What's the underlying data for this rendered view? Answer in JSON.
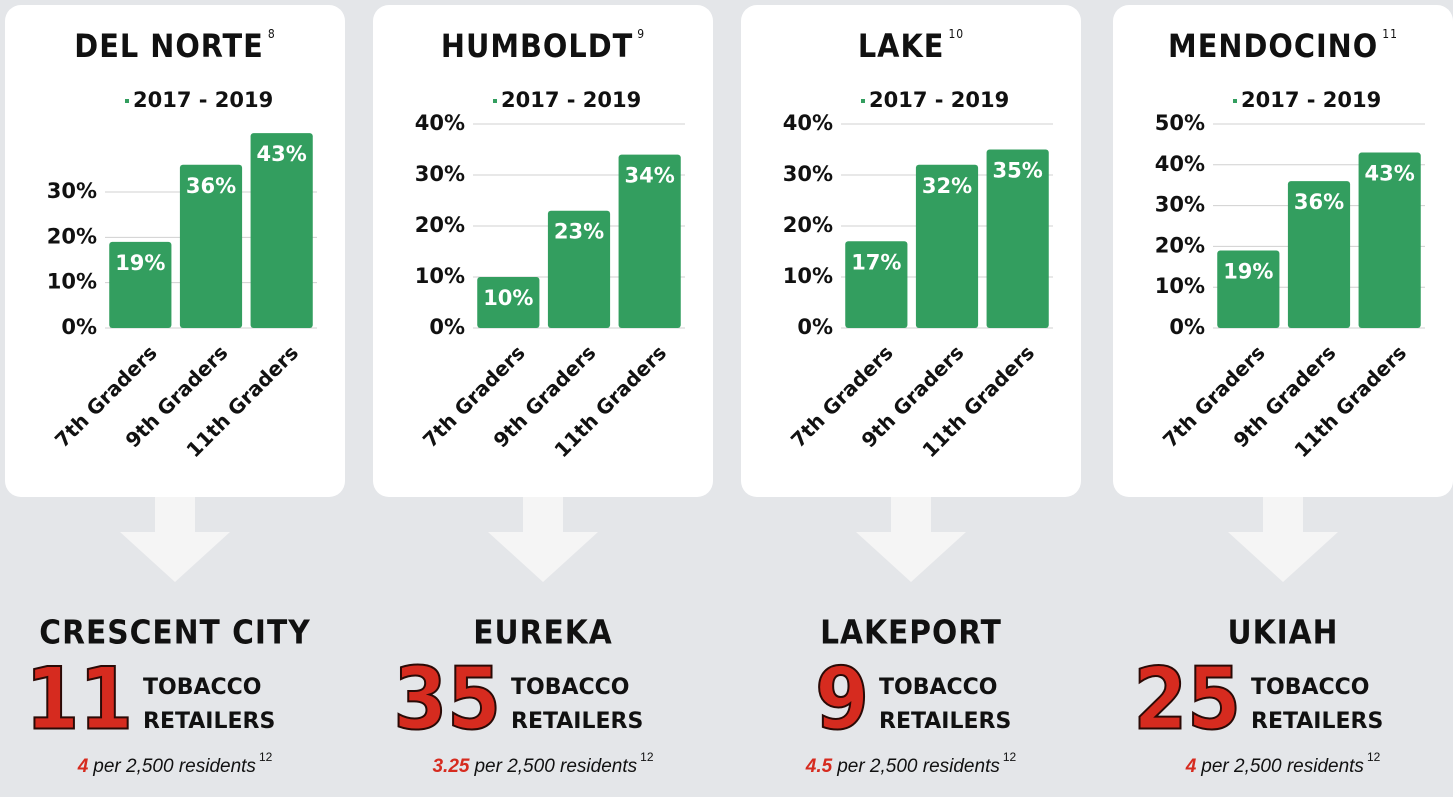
{
  "chart_data": [
    {
      "type": "bar",
      "title": "DEL NORTE",
      "footnote": "8",
      "legend": "2017 - 2019",
      "color": "#339e5f",
      "categories": [
        "7th Graders",
        "9th Graders",
        "11th Graders"
      ],
      "values": [
        19,
        36,
        43
      ],
      "value_labels": [
        "19%",
        "36%",
        "43%"
      ],
      "ylim": [
        0,
        45
      ],
      "yticks": [
        {
          "value": 0,
          "label": "0%"
        },
        {
          "value": 10,
          "label": "10%"
        },
        {
          "value": 20,
          "label": "20%"
        },
        {
          "value": 30,
          "label": "30%"
        }
      ],
      "grid": true
    },
    {
      "type": "bar",
      "title": "HUMBOLDT",
      "footnote": "9",
      "legend": "2017 - 2019",
      "color": "#339e5f",
      "categories": [
        "7th Graders",
        "9th Graders",
        "11th Graders"
      ],
      "values": [
        10,
        23,
        34
      ],
      "value_labels": [
        "10%",
        "23%",
        "34%"
      ],
      "ylim": [
        0,
        40
      ],
      "yticks": [
        {
          "value": 0,
          "label": "0%"
        },
        {
          "value": 10,
          "label": "10%"
        },
        {
          "value": 20,
          "label": "20%"
        },
        {
          "value": 30,
          "label": "30%"
        },
        {
          "value": 40,
          "label": "40%"
        }
      ],
      "grid": true
    },
    {
      "type": "bar",
      "title": "LAKE",
      "footnote": "10",
      "legend": "2017 - 2019",
      "color": "#339e5f",
      "categories": [
        "7th Graders",
        "9th Graders",
        "11th Graders"
      ],
      "values": [
        17,
        32,
        35
      ],
      "value_labels": [
        "17%",
        "32%",
        "35%"
      ],
      "ylim": [
        0,
        40
      ],
      "yticks": [
        {
          "value": 0,
          "label": "0%"
        },
        {
          "value": 10,
          "label": "10%"
        },
        {
          "value": 20,
          "label": "20%"
        },
        {
          "value": 30,
          "label": "30%"
        },
        {
          "value": 40,
          "label": "40%"
        }
      ],
      "grid": true
    },
    {
      "type": "bar",
      "title": "MENDOCINO",
      "footnote": "11",
      "legend": "2017 - 2019",
      "color": "#339e5f",
      "categories": [
        "7th Graders",
        "9th Graders",
        "11th Graders"
      ],
      "values": [
        19,
        36,
        43
      ],
      "value_labels": [
        "19%",
        "36%",
        "43%"
      ],
      "ylim": [
        0,
        50
      ],
      "yticks": [
        {
          "value": 0,
          "label": "0%"
        },
        {
          "value": 10,
          "label": "10%"
        },
        {
          "value": 20,
          "label": "20%"
        },
        {
          "value": 30,
          "label": "30%"
        },
        {
          "value": 40,
          "label": "40%"
        },
        {
          "value": 50,
          "label": "50%"
        }
      ],
      "grid": true
    }
  ],
  "cities": [
    {
      "name": "CRESCENT CITY",
      "count": "11",
      "line1": "TOBACCO",
      "line2": "RETAILERS",
      "rate": "4",
      "rate_text": "per 2,500 residents",
      "footnote": "12"
    },
    {
      "name": "EUREKA",
      "count": "35",
      "line1": "TOBACCO",
      "line2": "RETAILERS",
      "rate": "3.25",
      "rate_text": "per 2,500 residents",
      "footnote": "12"
    },
    {
      "name": "LAKEPORT",
      "count": "9",
      "line1": "TOBACCO",
      "line2": "RETAILERS",
      "rate": "4.5",
      "rate_text": "per 2,500 residents",
      "footnote": "12"
    },
    {
      "name": "UKIAH",
      "count": "25",
      "line1": "TOBACCO",
      "line2": "RETAILERS",
      "rate": "4",
      "rate_text": "per 2,500 residents",
      "footnote": "12"
    }
  ]
}
